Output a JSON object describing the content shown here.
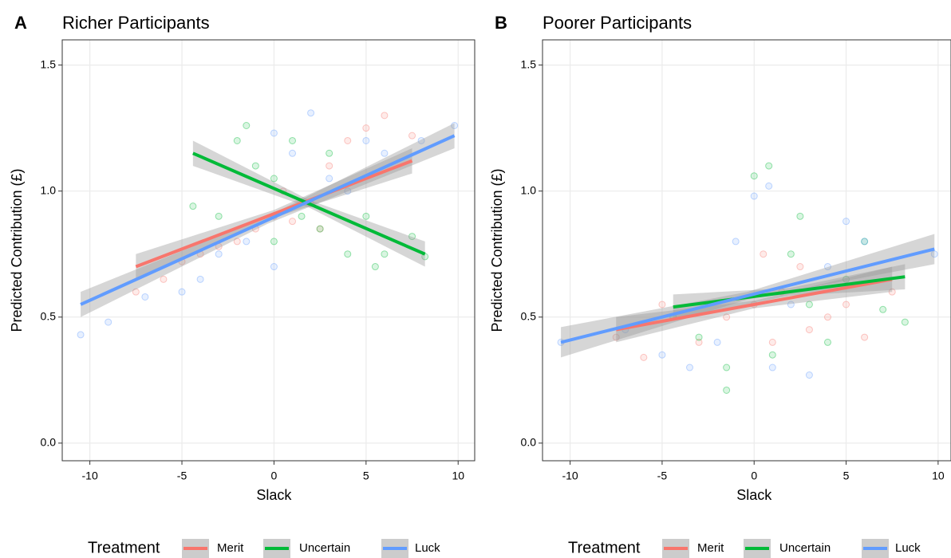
{
  "chart_data": [
    {
      "type": "scatter",
      "panel": "A",
      "title": "Richer Participants",
      "x_label": "Slack",
      "y_label": "Predicted Contribution (£)",
      "xlim": [
        -11.5,
        10.9
      ],
      "ylim": [
        -0.07,
        1.6
      ],
      "xticks": [
        -10,
        -5,
        0,
        5,
        10
      ],
      "yticks": [
        {
          "value": 0,
          "label": "0.0"
        },
        0.5,
        {
          "value": 1,
          "label": "1.0"
        },
        1.5
      ],
      "grid": true,
      "legend_title": "Treatment",
      "series": [
        {
          "name": "Merit",
          "color": "#F8766D",
          "x": [
            -7.5,
            -6,
            -5,
            -4,
            -3,
            -2,
            -1,
            0,
            0.5,
            1,
            2,
            2.5,
            3,
            4,
            5,
            6,
            7.5
          ],
          "y": [
            0.6,
            0.65,
            0.72,
            0.75,
            0.78,
            0.8,
            0.85,
            0.9,
            1.0,
            0.88,
            0.95,
            0.85,
            1.1,
            1.2,
            1.25,
            1.3,
            1.22
          ],
          "fit": {
            "x": [
              -7.5,
              0,
              7.5
            ],
            "y": [
              0.7,
              0.91,
              1.12
            ],
            "lower": [
              0.65,
              0.895,
              1.07
            ],
            "upper": [
              0.75,
              0.925,
              1.17
            ]
          }
        },
        {
          "name": "Uncertain",
          "color": "#00BA38",
          "x": [
            -4.4,
            -3,
            -2,
            -1.5,
            -1,
            0,
            0,
            1,
            1.5,
            2.5,
            3,
            4,
            5,
            5.5,
            6,
            7.5,
            8.2
          ],
          "y": [
            0.94,
            0.9,
            1.2,
            1.26,
            1.1,
            1.05,
            0.8,
            1.2,
            0.9,
            0.85,
            1.15,
            0.75,
            0.9,
            0.7,
            0.75,
            0.82,
            0.74
          ],
          "fit": {
            "x": [
              -4.4,
              1.9,
              8.2
            ],
            "y": [
              1.15,
              0.95,
              0.75
            ],
            "lower": [
              1.1,
              0.935,
              0.7
            ],
            "upper": [
              1.2,
              0.965,
              0.8
            ]
          }
        },
        {
          "name": "Luck",
          "color": "#619CFF",
          "x": [
            -10.5,
            -9,
            -7,
            -5,
            -4,
            -3,
            -1.5,
            0,
            0,
            1,
            2,
            3,
            4,
            5,
            6,
            8,
            9.8
          ],
          "y": [
            0.43,
            0.48,
            0.58,
            0.6,
            0.65,
            0.75,
            0.8,
            0.7,
            1.23,
            1.15,
            1.31,
            1.05,
            1.0,
            1.2,
            1.15,
            1.2,
            1.26
          ],
          "fit": {
            "x": [
              -10.5,
              -0.35,
              9.8
            ],
            "y": [
              0.55,
              0.885,
              1.22
            ],
            "lower": [
              0.5,
              0.87,
              1.17
            ],
            "upper": [
              0.6,
              0.9,
              1.27
            ]
          }
        }
      ]
    },
    {
      "type": "scatter",
      "panel": "B",
      "title": "Poorer Participants",
      "x_label": "Slack",
      "y_label": "Predicted Contribution (£)",
      "xlim": [
        -11.5,
        10.7
      ],
      "ylim": [
        -0.07,
        1.6
      ],
      "xticks": [
        -10,
        -5,
        0,
        5,
        10
      ],
      "yticks": [
        {
          "value": 0,
          "label": "0.0"
        },
        0.5,
        {
          "value": 1,
          "label": "1.0"
        },
        1.5
      ],
      "grid": true,
      "legend_title": "Treatment",
      "series": [
        {
          "name": "Merit",
          "color": "#F8766D",
          "x": [
            -7.5,
            -6,
            -5,
            -3,
            -1.5,
            0,
            0.5,
            1,
            1.5,
            2.5,
            3,
            4,
            5,
            6,
            7.5
          ],
          "y": [
            0.42,
            0.34,
            0.55,
            0.4,
            0.5,
            0.55,
            0.75,
            0.4,
            0.6,
            0.7,
            0.45,
            0.5,
            0.55,
            0.42,
            0.6
          ],
          "fit": {
            "x": [
              -7.5,
              0,
              7.5
            ],
            "y": [
              0.45,
              0.55,
              0.65
            ],
            "lower": [
              0.4,
              0.535,
              0.6
            ],
            "upper": [
              0.5,
              0.565,
              0.7
            ]
          }
        },
        {
          "name": "Uncertain",
          "color": "#00BA38",
          "x": [
            -4.4,
            -3,
            -1.5,
            -1.5,
            0,
            0.8,
            1,
            2,
            2.5,
            3,
            4,
            5,
            6,
            7,
            8.2
          ],
          "y": [
            0.5,
            0.42,
            0.3,
            0.21,
            1.06,
            1.1,
            0.35,
            0.75,
            0.9,
            0.55,
            0.4,
            0.65,
            0.8,
            0.53,
            0.48
          ],
          "fit": {
            "x": [
              -4.4,
              1.9,
              8.2
            ],
            "y": [
              0.54,
              0.6,
              0.66
            ],
            "lower": [
              0.49,
              0.585,
              0.61
            ],
            "upper": [
              0.59,
              0.615,
              0.71
            ]
          }
        },
        {
          "name": "Luck",
          "color": "#619CFF",
          "x": [
            -10.5,
            -7,
            -5,
            -3.5,
            -2,
            -1,
            0,
            0.8,
            1,
            2,
            3,
            4,
            5,
            6,
            9.8
          ],
          "y": [
            0.4,
            0.45,
            0.35,
            0.3,
            0.4,
            0.8,
            0.98,
            1.02,
            0.3,
            0.55,
            0.27,
            0.7,
            0.88,
            0.8,
            0.75
          ],
          "fit": {
            "x": [
              -10.5,
              -0.35,
              9.8
            ],
            "y": [
              0.4,
              0.585,
              0.77
            ],
            "lower": [
              0.34,
              0.57,
              0.71
            ],
            "upper": [
              0.46,
              0.6,
              0.83
            ]
          }
        }
      ]
    }
  ]
}
